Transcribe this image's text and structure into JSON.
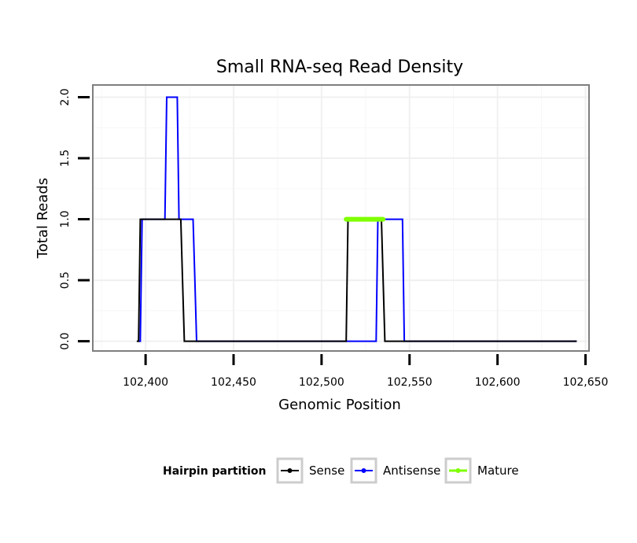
{
  "chart_data": {
    "type": "line",
    "title": "Small RNA-seq Read Density",
    "xlabel": "Genomic Position",
    "ylabel": "Total Reads",
    "xlim": [
      102370,
      102652
    ],
    "ylim": [
      -0.08,
      2.1
    ],
    "x_ticks": [
      102400,
      102450,
      102500,
      102550,
      102600,
      102650
    ],
    "x_tick_labels": [
      "102,400",
      "102,450",
      "102,500",
      "102,550",
      "102,600",
      "102,650"
    ],
    "y_ticks": [
      0,
      0.5,
      1,
      1.5,
      2
    ],
    "y_tick_labels": [
      "0.0",
      "0.5",
      "1.0",
      "1.5",
      "2.0"
    ],
    "grid": true,
    "legend": {
      "title": "Hairpin partition",
      "position": "bottom",
      "entries": [
        "Sense",
        "Antisense",
        "Mature"
      ]
    },
    "series": [
      {
        "name": "Antisense",
        "color": "#0000ff",
        "x": [
          102396,
          102397,
          102398,
          102411,
          102412,
          102418,
          102419,
          102427,
          102428,
          102429,
          102430,
          102514,
          102515,
          102531,
          102532,
          102546,
          102547,
          102645
        ],
        "y": [
          0,
          0,
          1,
          1,
          2,
          2,
          1,
          1,
          0.5,
          0,
          0,
          0,
          0,
          0,
          1,
          1,
          0,
          0
        ]
      },
      {
        "name": "Sense",
        "color": "#000000",
        "x": [
          102395,
          102396,
          102397,
          102420,
          102421,
          102422,
          102513,
          102514,
          102515,
          102534,
          102535,
          102536,
          102645
        ],
        "y": [
          0,
          0,
          1,
          1,
          0.5,
          0,
          0,
          0,
          1,
          1,
          0.5,
          0,
          0
        ]
      },
      {
        "name": "Mature",
        "color": "#7fff00",
        "x": [
          102514,
          102535
        ],
        "y": [
          1,
          1
        ]
      }
    ]
  }
}
